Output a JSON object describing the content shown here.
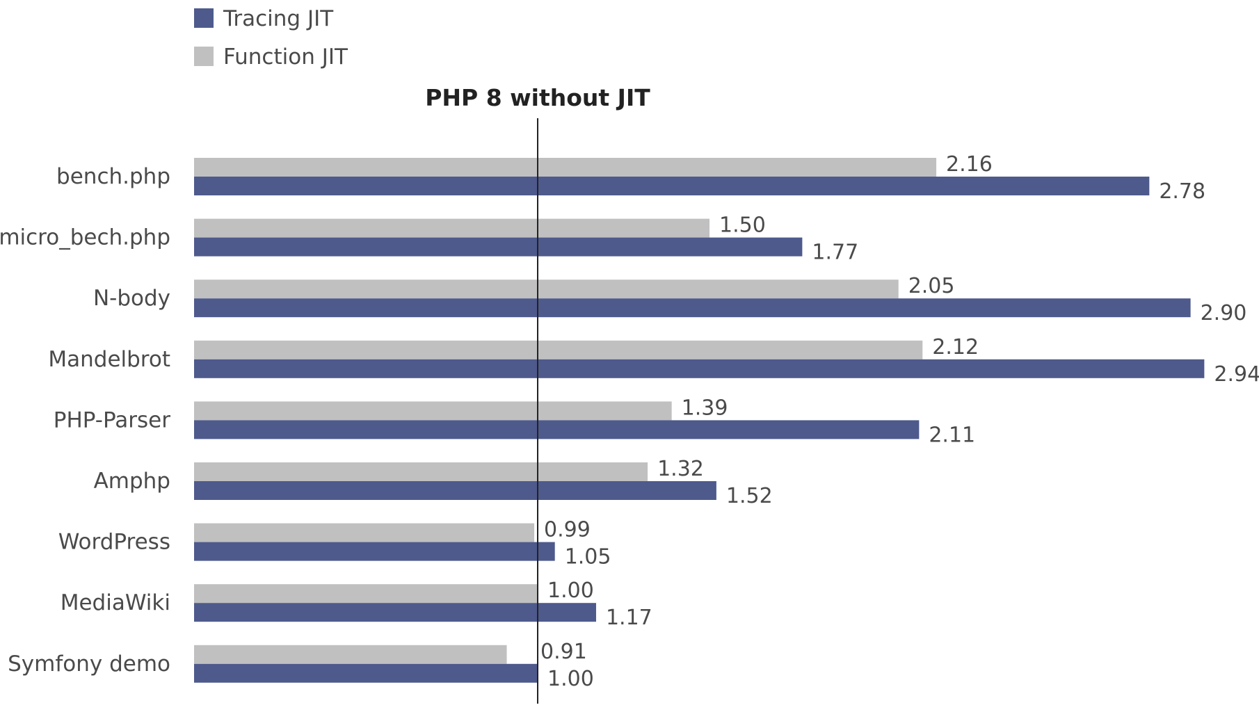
{
  "chart_data": {
    "type": "bar",
    "orientation": "horizontal",
    "baseline_label": "PHP 8 without JIT",
    "baseline_value": 1.0,
    "categories": [
      "bench.php",
      "micro_bech.php",
      "N-body",
      "Mandelbrot",
      "PHP-Parser",
      "Amphp",
      "WordPress",
      "MediaWiki",
      "Symfony demo"
    ],
    "series": [
      {
        "name": "Function JIT",
        "color": "#c0c0c0",
        "values": [
          2.16,
          1.5,
          2.05,
          2.12,
          1.39,
          1.32,
          0.99,
          1.0,
          0.91
        ],
        "labels": [
          "2.16",
          "1.50",
          "2.05",
          "2.12",
          "1.39",
          "1.32",
          "0.99",
          "1.00",
          "0.91"
        ]
      },
      {
        "name": "Tracing JIT",
        "color": "#4e5a8c",
        "values": [
          2.78,
          1.77,
          2.9,
          2.94,
          2.11,
          1.52,
          1.05,
          1.17,
          1.0
        ],
        "labels": [
          "2.78",
          "1.77",
          "2.90",
          "2.94",
          "2.11",
          "1.52",
          "1.05",
          "1.17",
          "1.00"
        ]
      }
    ],
    "legend": {
      "placement": "top-left",
      "items": [
        {
          "name": "Tracing JIT",
          "color": "#4e5a8c"
        },
        {
          "name": "Function JIT",
          "color": "#c0c0c0"
        }
      ]
    },
    "grid": false
  }
}
